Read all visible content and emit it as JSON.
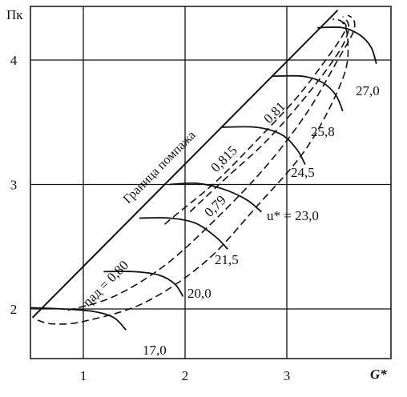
{
  "chart_data": {
    "type": "line",
    "title": "",
    "xlabel": "G*",
    "ylabel": "Пк",
    "xlim": [
      0.5,
      4.05
    ],
    "ylim": [
      1.63,
      4.45
    ],
    "grid": true,
    "x_ticks": [
      {
        "value": 1,
        "label": "1"
      },
      {
        "value": 2,
        "label": "2"
      },
      {
        "value": 3,
        "label": "3"
      }
    ],
    "y_ticks": [
      {
        "value": 2,
        "label": "2"
      },
      {
        "value": 3,
        "label": "3"
      },
      {
        "value": 4,
        "label": "4"
      }
    ],
    "surge_line": {
      "name": "Граница помпажа",
      "x": [
        0.5,
        3.5
      ],
      "y": [
        1.93,
        4.4
      ]
    },
    "speed_lines": [
      {
        "label": "17,0",
        "x": [
          0.48,
          0.8,
          1.1,
          1.3,
          1.42
        ],
        "y": [
          2.01,
          2.0,
          1.98,
          1.93,
          1.83
        ]
      },
      {
        "label": "20,0",
        "x": [
          1.2,
          1.5,
          1.75,
          1.9,
          1.98
        ],
        "y": [
          2.3,
          2.3,
          2.27,
          2.2,
          2.1
        ]
      },
      {
        "label": "21,5",
        "x": [
          1.55,
          1.85,
          2.1,
          2.3,
          2.42
        ],
        "y": [
          2.73,
          2.73,
          2.69,
          2.58,
          2.48
        ]
      },
      {
        "label": "u* = 23,0",
        "x": [
          1.85,
          2.1,
          2.35,
          2.6,
          2.75
        ],
        "y": [
          3.0,
          3.01,
          2.97,
          2.88,
          2.78
        ]
      },
      {
        "label": "24,5",
        "x": [
          2.35,
          2.7,
          2.95,
          3.1,
          3.18
        ],
        "y": [
          3.46,
          3.46,
          3.4,
          3.28,
          3.16
        ]
      },
      {
        "label": "25,8",
        "x": [
          2.85,
          3.15,
          3.35,
          3.48,
          3.55
        ],
        "y": [
          3.87,
          3.87,
          3.82,
          3.72,
          3.59
        ]
      },
      {
        "label": "27,0",
        "x": [
          3.3,
          3.55,
          3.72,
          3.83,
          3.88
        ],
        "y": [
          4.26,
          4.26,
          4.2,
          4.1,
          3.97
        ]
      }
    ],
    "efficiency_lines": [
      {
        "label": "ηад = 0,80",
        "x": [
          0.55,
          0.7,
          1.0,
          1.6,
          2.2,
          2.7,
          3.2,
          3.55,
          3.6,
          3.55,
          3.45
        ],
        "y": [
          1.91,
          1.88,
          1.9,
          2.05,
          2.38,
          2.82,
          3.3,
          3.85,
          4.15,
          4.3,
          4.33
        ]
      },
      {
        "label": "0,79",
        "x": [
          0.85,
          1.3,
          1.8,
          2.3,
          2.8,
          3.2,
          3.5,
          3.65,
          3.66,
          3.6
        ],
        "y": [
          1.99,
          2.1,
          2.35,
          2.72,
          3.15,
          3.58,
          4.0,
          4.22,
          4.32,
          4.36
        ]
      },
      {
        "label": "0,815",
        "x": [
          2.05,
          2.1,
          2.4,
          2.8,
          3.2,
          3.5,
          3.6,
          3.6,
          3.55
        ],
        "y": [
          2.78,
          2.82,
          3.05,
          3.35,
          3.72,
          4.05,
          4.22,
          4.3,
          4.35
        ]
      },
      {
        "label": "0,81",
        "x": [
          1.8,
          1.9,
          2.3,
          2.7,
          3.1,
          3.4,
          3.55,
          3.58,
          3.52
        ],
        "y": [
          2.68,
          2.75,
          3.02,
          3.35,
          3.7,
          4.02,
          4.2,
          4.28,
          4.32
        ]
      }
    ],
    "annotations": [
      {
        "text": "Граница помпажа"
      },
      {
        "text": "ηад = 0,80"
      },
      {
        "text": "0,815"
      },
      {
        "text": "0,81"
      },
      {
        "text": "0,79"
      }
    ]
  }
}
